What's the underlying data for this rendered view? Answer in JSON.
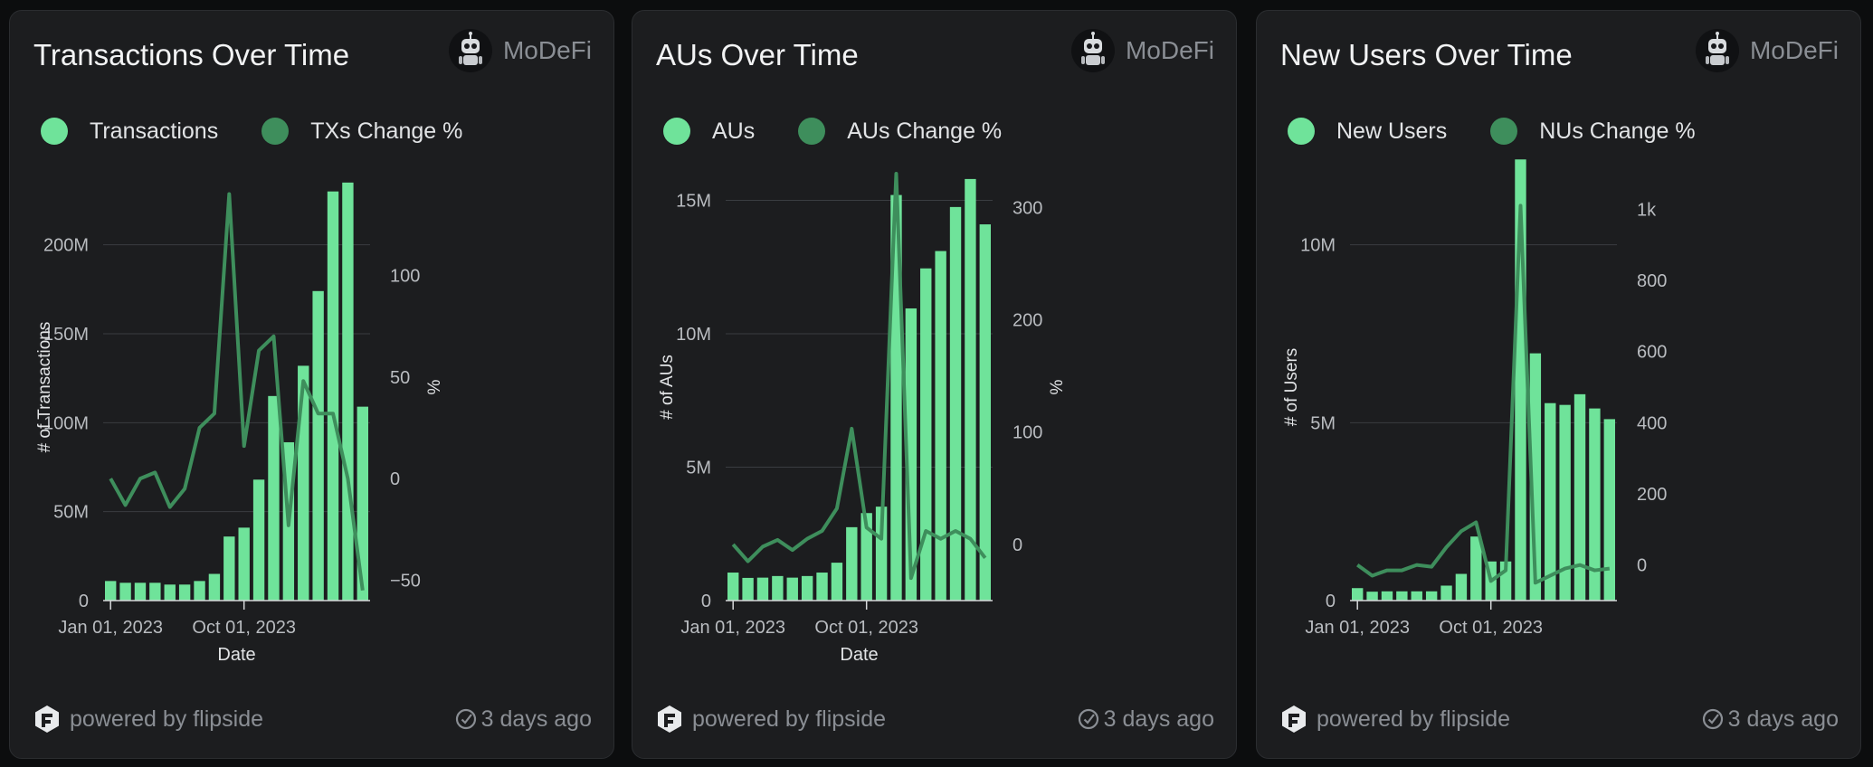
{
  "author_name": "MoDeFi",
  "footer": {
    "powered_by": "powered by flipside",
    "updated": "3 days ago"
  },
  "colors": {
    "bar": "#6fe39a",
    "line": "#3e8e5c",
    "background": "#1c1d1f",
    "grid": "#3a3d41",
    "tick_text": "#b9bcc0"
  },
  "cards": [
    {
      "title": "Transactions Over Time",
      "legend": [
        "Transactions",
        "TXs Change %"
      ],
      "chart_data": {
        "type": "bar",
        "title": "Transactions Over Time",
        "xlabel": "Date",
        "ylabel": "# of Transactions",
        "y2label": "%",
        "x_ticks": [
          "Jan 01, 2023",
          "Oct 01, 2023"
        ],
        "x_tick_index": [
          0,
          9
        ],
        "ylim": [
          0,
          240000000
        ],
        "y_ticks": [
          0,
          50000000,
          100000000,
          150000000,
          200000000
        ],
        "y_tick_labels": [
          "0",
          "50M",
          "100M",
          "150M",
          "200M"
        ],
        "y2lim": [
          -60,
          150
        ],
        "y2_ticks": [
          -50,
          0,
          50,
          100
        ],
        "y2_tick_labels": [
          "−50",
          "0",
          "50",
          "100"
        ],
        "series": [
          {
            "name": "Transactions",
            "type": "bar",
            "values": [
              11000000,
              10000000,
              10000000,
              10000000,
              9000000,
              9000000,
              11000000,
              15000000,
              36000000,
              41000000,
              68000000,
              115000000,
              89000000,
              132000000,
              174000000,
              230000000,
              235000000,
              109000000
            ]
          },
          {
            "name": "TXs Change %",
            "type": "line",
            "values": [
              0,
              -13,
              0,
              3,
              -14,
              -5,
              25,
              32,
              140,
              16,
              63,
              70,
              -23,
              48,
              32,
              32,
              0,
              -55
            ]
          }
        ]
      }
    },
    {
      "title": "AUs Over Time",
      "legend": [
        "AUs",
        "AUs Change %"
      ],
      "chart_data": {
        "type": "bar",
        "title": "AUs Over Time",
        "xlabel": "Date",
        "ylabel": "# of AUs",
        "y2label": "%",
        "x_ticks": [
          "Jan 01, 2023",
          "Oct 01, 2023"
        ],
        "x_tick_index": [
          0,
          9
        ],
        "ylim": [
          0,
          16000000
        ],
        "y_ticks": [
          0,
          5000000,
          10000000,
          15000000
        ],
        "y_tick_labels": [
          "0",
          "5M",
          "10M",
          "15M"
        ],
        "y2lim": [
          -50,
          330
        ],
        "y2_ticks": [
          0,
          100,
          200,
          300
        ],
        "y2_tick_labels": [
          "0",
          "100",
          "200",
          "300"
        ],
        "series": [
          {
            "name": "AUs",
            "type": "bar",
            "values": [
              1050000,
              850000,
              860000,
              920000,
              860000,
              920000,
              1050000,
              1420000,
              2750000,
              3280000,
              3520000,
              15200000,
              10950000,
              12450000,
              13100000,
              14750000,
              15800000,
              14100000
            ]
          },
          {
            "name": "AUs Change %",
            "type": "line",
            "values": [
              0,
              -15,
              -2,
              4,
              -5,
              5,
              12,
              32,
              103,
              15,
              5,
              330,
              -30,
              12,
              5,
              12,
              5,
              -12
            ]
          }
        ]
      }
    },
    {
      "title": "New Users Over Time",
      "legend": [
        "New Users",
        "NUs Change %"
      ],
      "chart_data": {
        "type": "bar",
        "title": "New Users Over Time",
        "xlabel": "",
        "ylabel": "# of Users",
        "y2label": "",
        "x_ticks": [
          "Jan 01, 2023",
          "Oct 01, 2023"
        ],
        "x_tick_index": [
          0,
          9
        ],
        "ylim": [
          0,
          12000000
        ],
        "y_ticks": [
          0,
          5000000,
          10000000
        ],
        "y_tick_labels": [
          "0",
          "5M",
          "10M"
        ],
        "y2lim": [
          -100,
          1100
        ],
        "y2_ticks": [
          0,
          200,
          400,
          600,
          800,
          1000
        ],
        "y2_tick_labels": [
          "0",
          "200",
          "400",
          "600",
          "800",
          "1k"
        ],
        "series": [
          {
            "name": "New Users",
            "type": "bar",
            "values": [
              350000,
              250000,
              260000,
              260000,
              260000,
              260000,
              420000,
              750000,
              1800000,
              1100000,
              1100000,
              12400000,
              6950000,
              5550000,
              5500000,
              5800000,
              5400000,
              5100000
            ]
          },
          {
            "name": "NUs Change %",
            "type": "line",
            "values": [
              0,
              -30,
              -15,
              -15,
              0,
              -5,
              50,
              95,
              120,
              -45,
              -15,
              1010,
              -50,
              -30,
              -10,
              0,
              -15,
              -10
            ]
          }
        ]
      }
    }
  ]
}
